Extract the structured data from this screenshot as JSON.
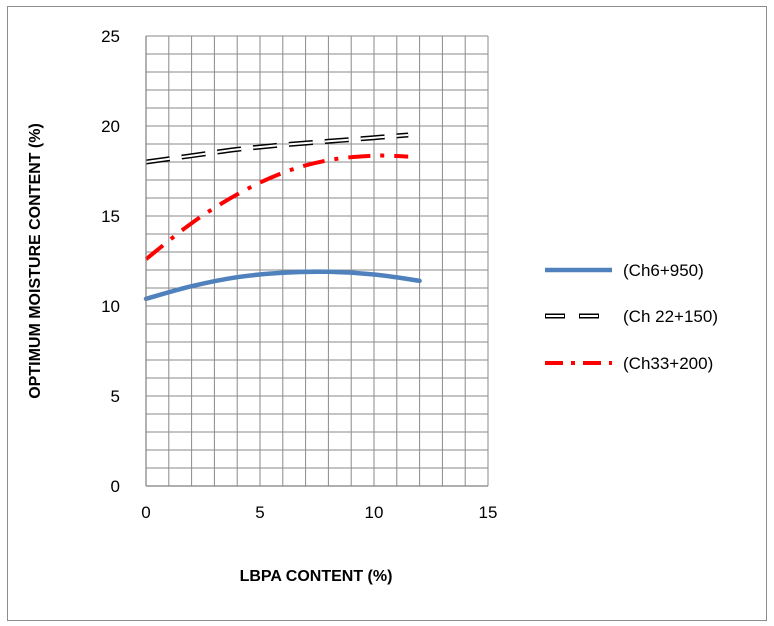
{
  "chart_data": {
    "type": "line",
    "xlabel": "LBPA CONTENT (%)",
    "ylabel": "OPTIMUM MOISTURE CONTENT (%)",
    "xlim": [
      0,
      15
    ],
    "ylim": [
      0,
      25
    ],
    "x_ticks": [
      0,
      5,
      10,
      15
    ],
    "y_ticks": [
      0,
      5,
      10,
      15,
      20,
      25
    ],
    "grid": true,
    "legend_position": "right",
    "series": [
      {
        "name": "(Ch6+950)",
        "color": "#4f81bd",
        "style": "solid",
        "x": [
          0,
          2,
          4,
          6,
          8,
          10,
          12
        ],
        "y": [
          10.4,
          11.1,
          11.6,
          11.85,
          11.9,
          11.75,
          11.4
        ]
      },
      {
        "name": "(Ch 22+150)",
        "color": "#000000",
        "style": "hollow-dash",
        "x": [
          0,
          2,
          4,
          6,
          8,
          10,
          11.5
        ],
        "y": [
          18.0,
          18.35,
          18.7,
          18.95,
          19.15,
          19.35,
          19.5
        ]
      },
      {
        "name": "(Ch33+200)",
        "color": "#ff0000",
        "style": "dash-dot",
        "x": [
          0,
          2,
          4,
          6,
          8,
          10,
          11.5
        ],
        "y": [
          12.6,
          14.6,
          16.2,
          17.4,
          18.1,
          18.35,
          18.3
        ]
      }
    ]
  }
}
